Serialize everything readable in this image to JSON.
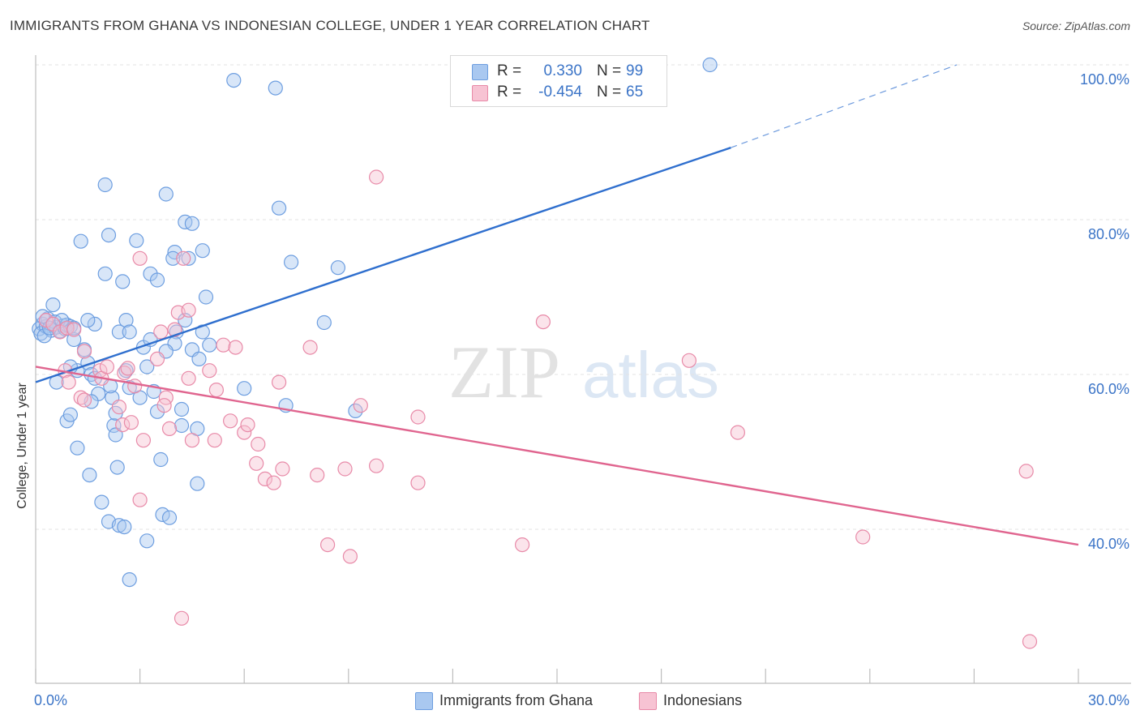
{
  "title": "IMMIGRANTS FROM GHANA VS INDONESIAN COLLEGE, UNDER 1 YEAR CORRELATION CHART",
  "source": "Source: ZipAtlas.com",
  "watermark": {
    "zip": "ZIP",
    "atlas": "atlas"
  },
  "stats": [
    {
      "r_label": "R =",
      "r_value": "0.330",
      "n_label": "N =",
      "n_value": "99",
      "color": "#a9c8f0",
      "border": "#6d9ee0"
    },
    {
      "r_label": "R =",
      "r_value": "-0.454",
      "n_label": "N =",
      "n_value": "65",
      "color": "#f7c3d3",
      "border": "#e88aa8"
    }
  ],
  "chart_data": {
    "type": "scatter",
    "xlabel": "",
    "ylabel": "College, Under 1 year",
    "xlim": [
      0,
      30
    ],
    "ylim": [
      22,
      102
    ],
    "x_tick_labels": [
      "0.0%",
      "30.0%"
    ],
    "y_ticks": [
      40,
      60,
      80,
      100
    ],
    "y_tick_labels": [
      "40.0%",
      "60.0%",
      "80.0%",
      "100.0%"
    ],
    "grid": true,
    "legend_position": "bottom-center",
    "series": [
      {
        "name": "Immigrants from Ghana",
        "color": "#6d9ee0",
        "fill": "#a9c8f0",
        "trend": {
          "x": [
            0,
            20
          ],
          "y": [
            59.0,
            89.3
          ],
          "dashed_to": [
            26.5,
            100.0
          ],
          "color": "#2f6fce"
        },
        "points": [
          [
            0.1,
            65.9
          ],
          [
            0.2,
            66.5
          ],
          [
            0.15,
            65.3
          ],
          [
            0.3,
            66.2
          ],
          [
            0.35,
            67.2
          ],
          [
            0.45,
            65.7
          ],
          [
            0.55,
            66.8
          ],
          [
            0.6,
            66.1
          ],
          [
            0.7,
            65.6
          ],
          [
            0.8,
            66.3
          ],
          [
            0.85,
            65.9
          ],
          [
            0.9,
            66.4
          ],
          [
            0.25,
            65.0
          ],
          [
            0.4,
            66.0
          ],
          [
            0.5,
            69.0
          ],
          [
            1.0,
            66.2
          ],
          [
            1.1,
            64.5
          ],
          [
            1.7,
            66.5
          ],
          [
            2.0,
            73.0
          ],
          [
            2.4,
            65.5
          ],
          [
            2.6,
            60.5
          ],
          [
            2.7,
            58.3
          ],
          [
            2.2,
            57.0
          ],
          [
            1.2,
            60.5
          ],
          [
            1.0,
            61.0
          ],
          [
            1.5,
            61.5
          ],
          [
            1.6,
            60.0
          ],
          [
            1.7,
            59.5
          ],
          [
            1.8,
            57.5
          ],
          [
            0.6,
            59.0
          ],
          [
            0.9,
            54.0
          ],
          [
            1.0,
            54.8
          ],
          [
            1.2,
            50.5
          ],
          [
            1.55,
            47.0
          ],
          [
            1.9,
            43.5
          ],
          [
            2.1,
            41.0
          ],
          [
            2.4,
            40.5
          ],
          [
            2.55,
            40.3
          ],
          [
            3.2,
            38.5
          ],
          [
            2.7,
            33.5
          ],
          [
            1.3,
            77.2
          ],
          [
            2.0,
            84.5
          ],
          [
            2.1,
            78.0
          ],
          [
            2.9,
            77.3
          ],
          [
            2.5,
            72.0
          ],
          [
            3.3,
            73.0
          ],
          [
            3.5,
            72.2
          ],
          [
            4.0,
            75.8
          ],
          [
            3.95,
            75.0
          ],
          [
            4.3,
            79.7
          ],
          [
            4.5,
            79.5
          ],
          [
            4.4,
            75.0
          ],
          [
            4.8,
            76.0
          ],
          [
            3.75,
            83.3
          ],
          [
            3.1,
            63.5
          ],
          [
            3.3,
            64.5
          ],
          [
            2.6,
            67.0
          ],
          [
            2.7,
            65.5
          ],
          [
            3.2,
            61.0
          ],
          [
            3.4,
            57.8
          ],
          [
            3.5,
            55.2
          ],
          [
            3.0,
            57.0
          ],
          [
            2.25,
            53.4
          ],
          [
            2.3,
            52.2
          ],
          [
            3.6,
            49.0
          ],
          [
            3.65,
            41.9
          ],
          [
            3.85,
            41.5
          ],
          [
            4.2,
            55.5
          ],
          [
            4.2,
            53.4
          ],
          [
            4.5,
            63.2
          ],
          [
            4.05,
            65.5
          ],
          [
            4.0,
            64.0
          ],
          [
            4.8,
            65.5
          ],
          [
            4.7,
            62.0
          ],
          [
            5.0,
            63.8
          ],
          [
            4.9,
            70.0
          ],
          [
            4.65,
            53.0
          ],
          [
            4.65,
            45.9
          ],
          [
            5.7,
            98.0
          ],
          [
            6.9,
            97.0
          ],
          [
            7.0,
            81.5
          ],
          [
            7.35,
            74.5
          ],
          [
            6.0,
            58.2
          ],
          [
            7.2,
            56.0
          ],
          [
            8.3,
            66.7
          ],
          [
            8.7,
            73.8
          ],
          [
            9.2,
            55.3
          ],
          [
            19.4,
            100.0
          ],
          [
            1.5,
            67.0
          ],
          [
            2.15,
            58.5
          ],
          [
            1.1,
            66.0
          ],
          [
            0.75,
            67.0
          ],
          [
            1.4,
            63.2
          ],
          [
            0.2,
            67.5
          ],
          [
            1.6,
            56.5
          ],
          [
            2.3,
            55.0
          ],
          [
            4.3,
            67.0
          ],
          [
            3.75,
            63.0
          ],
          [
            2.35,
            48.0
          ]
        ]
      },
      {
        "name": "Indonesians",
        "color": "#e88aa8",
        "fill": "#f7c3d3",
        "trend": {
          "x": [
            0,
            30
          ],
          "y": [
            61.0,
            38.0
          ],
          "color": "#e0658f"
        },
        "points": [
          [
            0.3,
            67.0
          ],
          [
            0.5,
            66.5
          ],
          [
            0.7,
            65.5
          ],
          [
            0.9,
            66.0
          ],
          [
            1.1,
            65.8
          ],
          [
            0.85,
            60.5
          ],
          [
            0.95,
            59.0
          ],
          [
            1.4,
            63.0
          ],
          [
            1.85,
            60.5
          ],
          [
            1.9,
            59.5
          ],
          [
            1.3,
            57.0
          ],
          [
            1.4,
            56.7
          ],
          [
            2.05,
            61.0
          ],
          [
            2.55,
            60.2
          ],
          [
            2.65,
            60.8
          ],
          [
            2.4,
            55.8
          ],
          [
            2.5,
            53.5
          ],
          [
            2.75,
            53.8
          ],
          [
            2.85,
            58.5
          ],
          [
            3.1,
            51.5
          ],
          [
            3.0,
            43.8
          ],
          [
            3.5,
            62.0
          ],
          [
            3.6,
            65.5
          ],
          [
            3.75,
            57.0
          ],
          [
            3.7,
            56.0
          ],
          [
            3.85,
            53.0
          ],
          [
            4.0,
            65.8
          ],
          [
            4.1,
            68.0
          ],
          [
            4.4,
            68.3
          ],
          [
            4.4,
            59.5
          ],
          [
            4.5,
            51.5
          ],
          [
            4.25,
            75.0
          ],
          [
            3.0,
            75.0
          ],
          [
            5.0,
            60.5
          ],
          [
            5.2,
            58.0
          ],
          [
            5.15,
            51.5
          ],
          [
            5.4,
            63.8
          ],
          [
            5.6,
            54.0
          ],
          [
            5.75,
            63.5
          ],
          [
            6.0,
            52.5
          ],
          [
            6.1,
            53.5
          ],
          [
            6.35,
            48.5
          ],
          [
            6.4,
            51.0
          ],
          [
            6.6,
            46.5
          ],
          [
            6.85,
            46.0
          ],
          [
            7.0,
            59.0
          ],
          [
            7.1,
            47.8
          ],
          [
            7.9,
            63.5
          ],
          [
            8.1,
            47.0
          ],
          [
            8.4,
            38.0
          ],
          [
            8.9,
            47.8
          ],
          [
            9.05,
            36.5
          ],
          [
            9.35,
            56.0
          ],
          [
            9.8,
            48.2
          ],
          [
            9.8,
            85.5
          ],
          [
            11.0,
            54.5
          ],
          [
            11.0,
            46.0
          ],
          [
            14.0,
            38.0
          ],
          [
            14.6,
            66.8
          ],
          [
            18.8,
            61.8
          ],
          [
            20.2,
            52.5
          ],
          [
            23.8,
            39.0
          ],
          [
            28.5,
            47.5
          ],
          [
            28.6,
            25.5
          ],
          [
            4.2,
            28.5
          ]
        ]
      }
    ]
  }
}
